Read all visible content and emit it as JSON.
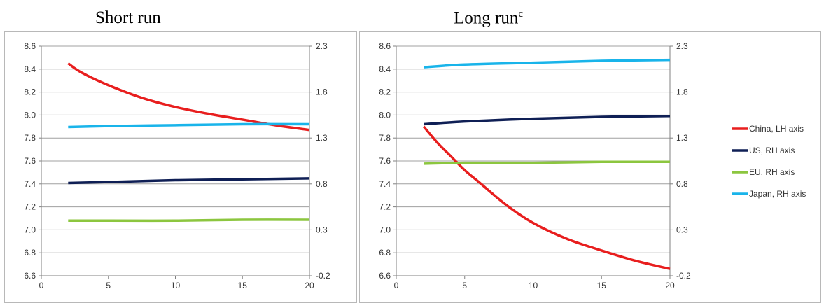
{
  "titles": {
    "left": "Short run",
    "right": "Long run",
    "right_sup": "c"
  },
  "chart_data": [
    {
      "type": "line",
      "title": "Short run",
      "xlim": [
        0,
        20
      ],
      "x_ticks": [
        0,
        5,
        10,
        15,
        20
      ],
      "ylim_left": [
        6.6,
        8.6
      ],
      "y_ticks_left": [
        "6.6",
        "6.8",
        "7.0",
        "7.2",
        "7.4",
        "7.6",
        "7.8",
        "8.0",
        "8.2",
        "8.4",
        "8.6"
      ],
      "ylim_right": [
        -0.2,
        2.3
      ],
      "y_ticks_right": [
        "-0.2",
        "0.3",
        "0.8",
        "1.3",
        "1.8",
        "2.3"
      ],
      "grid": "horizontal",
      "legend": "none",
      "series": [
        {
          "name": "China, LH axis",
          "axis": "left",
          "color": "#e81e1e",
          "x": [
            2,
            3,
            5,
            7.5,
            10,
            12.5,
            15,
            17.5,
            20
          ],
          "y": [
            8.45,
            8.37,
            8.26,
            8.15,
            8.07,
            8.01,
            7.96,
            7.91,
            7.87
          ]
        },
        {
          "name": "US, RH axis",
          "axis": "right",
          "color": "#0f1f55",
          "x": [
            2,
            5,
            10,
            15,
            20
          ],
          "y": [
            0.81,
            0.82,
            0.84,
            0.85,
            0.86
          ]
        },
        {
          "name": "EU, RH axis",
          "axis": "right",
          "color": "#8cc63f",
          "x": [
            2,
            5,
            10,
            15,
            20
          ],
          "y": [
            0.4,
            0.4,
            0.4,
            0.41,
            0.41
          ]
        },
        {
          "name": "Japan, RH axis",
          "axis": "right",
          "color": "#19b4ea",
          "x": [
            2,
            5,
            10,
            15,
            20
          ],
          "y": [
            1.42,
            1.43,
            1.44,
            1.45,
            1.45
          ]
        }
      ]
    },
    {
      "type": "line",
      "title": "Long run",
      "xlim": [
        0,
        20
      ],
      "x_ticks": [
        0,
        5,
        10,
        15,
        20
      ],
      "ylim_left": [
        6.6,
        8.6
      ],
      "y_ticks_left": [
        "6.6",
        "6.8",
        "7.0",
        "7.2",
        "7.4",
        "7.6",
        "7.8",
        "8.0",
        "8.2",
        "8.4",
        "8.6"
      ],
      "ylim_right": [
        -0.2,
        2.3
      ],
      "y_ticks_right": [
        "-0.2",
        "0.3",
        "0.8",
        "1.3",
        "1.8",
        "2.3"
      ],
      "grid": "horizontal",
      "legend": "right",
      "series": [
        {
          "name": "China, LH axis",
          "axis": "left",
          "color": "#e81e1e",
          "x": [
            2,
            3,
            4,
            5,
            6,
            8,
            10,
            12.5,
            15,
            17.5,
            20
          ],
          "y": [
            7.9,
            7.76,
            7.64,
            7.52,
            7.42,
            7.22,
            7.06,
            6.92,
            6.82,
            6.73,
            6.66
          ]
        },
        {
          "name": "US, RH axis",
          "axis": "right",
          "color": "#0f1f55",
          "x": [
            2,
            5,
            10,
            15,
            20
          ],
          "y": [
            1.45,
            1.48,
            1.51,
            1.53,
            1.54
          ]
        },
        {
          "name": "EU, RH axis",
          "axis": "right",
          "color": "#8cc63f",
          "x": [
            2,
            5,
            10,
            15,
            20
          ],
          "y": [
            1.02,
            1.03,
            1.03,
            1.04,
            1.04
          ]
        },
        {
          "name": "Japan, RH axis",
          "axis": "right",
          "color": "#19b4ea",
          "x": [
            2,
            5,
            10,
            15,
            20
          ],
          "y": [
            2.07,
            2.1,
            2.12,
            2.14,
            2.15
          ]
        }
      ]
    }
  ]
}
